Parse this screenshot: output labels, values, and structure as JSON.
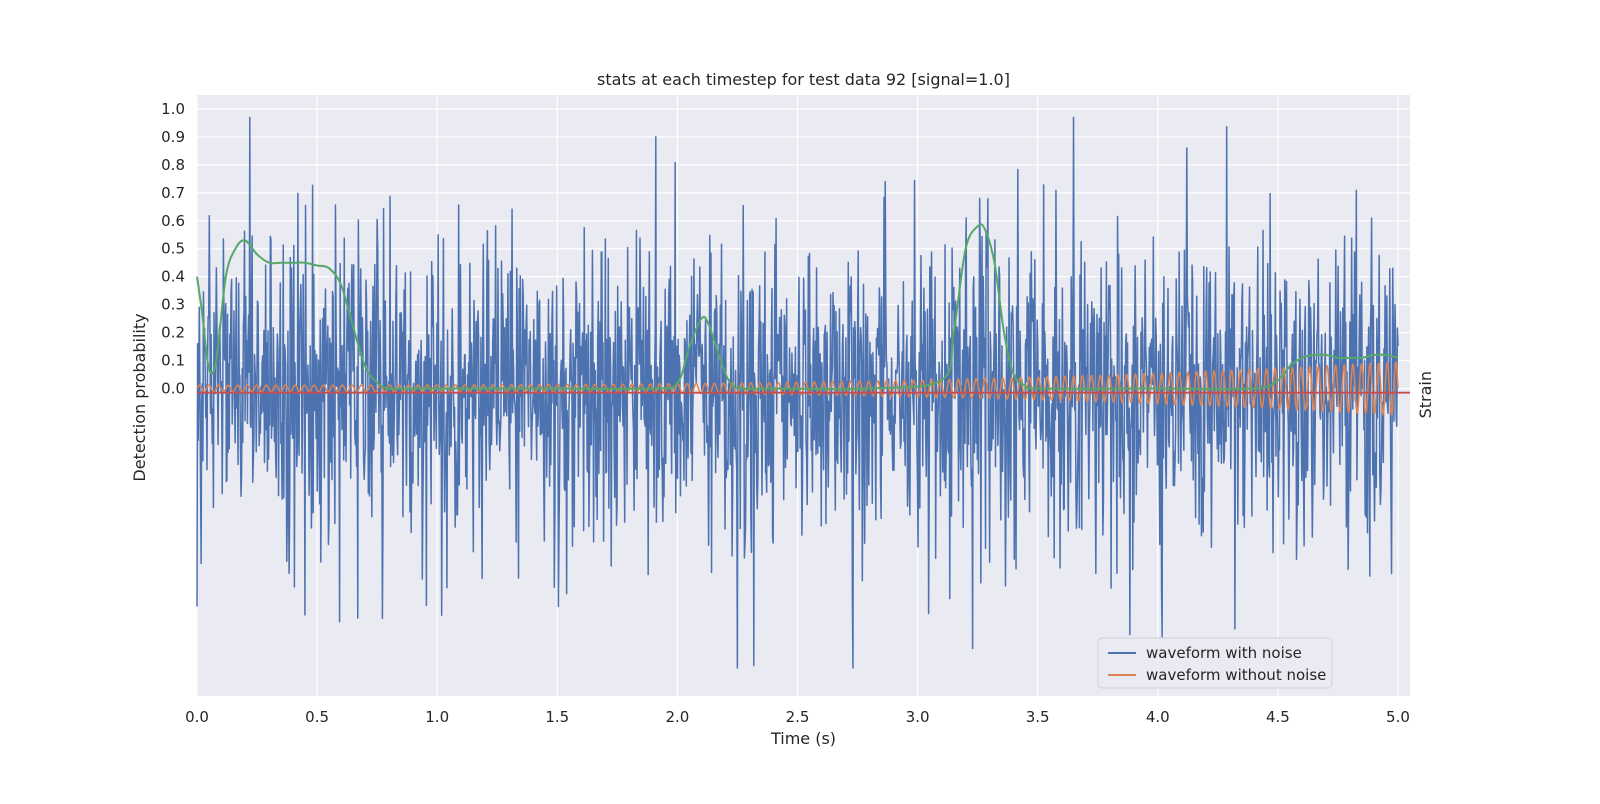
{
  "chart_data": {
    "type": "line",
    "title": "stats at each timestep for test data 92 [signal=1.0]",
    "xlabel": "Time (s)",
    "ylabel": "Detection probability",
    "ylabel_right": "Strain",
    "xlim": [
      0.0,
      5.05
    ],
    "ylim": [
      -1.1,
      1.05
    ],
    "x_ticks": [
      0.0,
      0.5,
      1.0,
      1.5,
      2.0,
      2.5,
      3.0,
      3.5,
      4.0,
      4.5,
      5.0
    ],
    "x_tick_labels": [
      "0.0",
      "0.5",
      "1.0",
      "1.5",
      "2.0",
      "2.5",
      "3.0",
      "3.5",
      "4.0",
      "4.5",
      "5.0"
    ],
    "y_ticks": [
      0.0,
      0.1,
      0.2,
      0.3,
      0.4,
      0.5,
      0.6,
      0.7,
      0.8,
      0.9,
      1.0
    ],
    "y_tick_labels": [
      "0.0",
      "0.1",
      "0.2",
      "0.3",
      "0.4",
      "0.5",
      "0.6",
      "0.7",
      "0.8",
      "0.9",
      "1.0"
    ],
    "grid": true,
    "legend_position": "lower-right",
    "colors": {
      "background": "#eaeaf2",
      "grid": "#ffffff",
      "noise": "#4c72b0",
      "clean": "#dd8452",
      "probability": "#55a868",
      "threshold": "#c44e52"
    },
    "series": [
      {
        "name": "waveform with noise",
        "key": "noise",
        "x_range": [
          0.0,
          5.0
        ],
        "samples": 2048,
        "amplitude_range": [
          -1.0,
          0.97
        ],
        "peaks": [
          {
            "x": 0.22,
            "y": 0.97
          },
          {
            "x": 1.91,
            "y": 0.9
          },
          {
            "x": 2.73,
            "y": -1.0
          },
          {
            "x": 3.23,
            "y": -0.93
          },
          {
            "x": 4.32,
            "y": -0.86
          },
          {
            "x": 4.12,
            "y": 0.86
          },
          {
            "x": 0.0,
            "y": -0.78
          },
          {
            "x": 0.45,
            "y": -0.81
          }
        ]
      },
      {
        "name": "waveform without noise",
        "key": "clean",
        "x_range": [
          0.0,
          5.0
        ],
        "freq_start": 25,
        "freq_end": 28,
        "amplitude_start": 0.012,
        "amplitude_end": 0.095
      },
      {
        "key": "probability",
        "x": [
          0.0,
          0.02,
          0.05,
          0.08,
          0.12,
          0.16,
          0.2,
          0.25,
          0.3,
          0.35,
          0.4,
          0.45,
          0.5,
          0.55,
          0.6,
          0.65,
          0.7,
          0.75,
          0.8,
          0.85,
          1.0,
          1.5,
          1.9,
          2.0,
          2.05,
          2.1,
          2.13,
          2.18,
          2.22,
          2.27,
          2.4,
          2.8,
          3.1,
          3.15,
          3.2,
          3.25,
          3.28,
          3.32,
          3.36,
          3.4,
          3.45,
          3.5,
          4.0,
          4.4,
          4.5,
          4.55,
          4.6,
          4.65,
          4.7,
          4.75,
          4.8,
          4.85,
          4.9,
          4.95,
          5.0
        ],
        "y": [
          0.4,
          0.28,
          0.07,
          0.1,
          0.4,
          0.5,
          0.53,
          0.48,
          0.45,
          0.45,
          0.45,
          0.45,
          0.44,
          0.43,
          0.37,
          0.22,
          0.08,
          0.02,
          0.0,
          0.0,
          0.0,
          0.0,
          0.0,
          0.02,
          0.15,
          0.25,
          0.23,
          0.1,
          0.02,
          0.0,
          0.0,
          0.0,
          0.03,
          0.2,
          0.5,
          0.58,
          0.57,
          0.45,
          0.2,
          0.05,
          0.01,
          0.0,
          0.0,
          0.0,
          0.03,
          0.08,
          0.11,
          0.12,
          0.12,
          0.11,
          0.11,
          0.11,
          0.12,
          0.12,
          0.11
        ]
      },
      {
        "key": "threshold",
        "y_value": -0.015
      }
    ],
    "legend": [
      "waveform with noise",
      "waveform without noise"
    ]
  }
}
